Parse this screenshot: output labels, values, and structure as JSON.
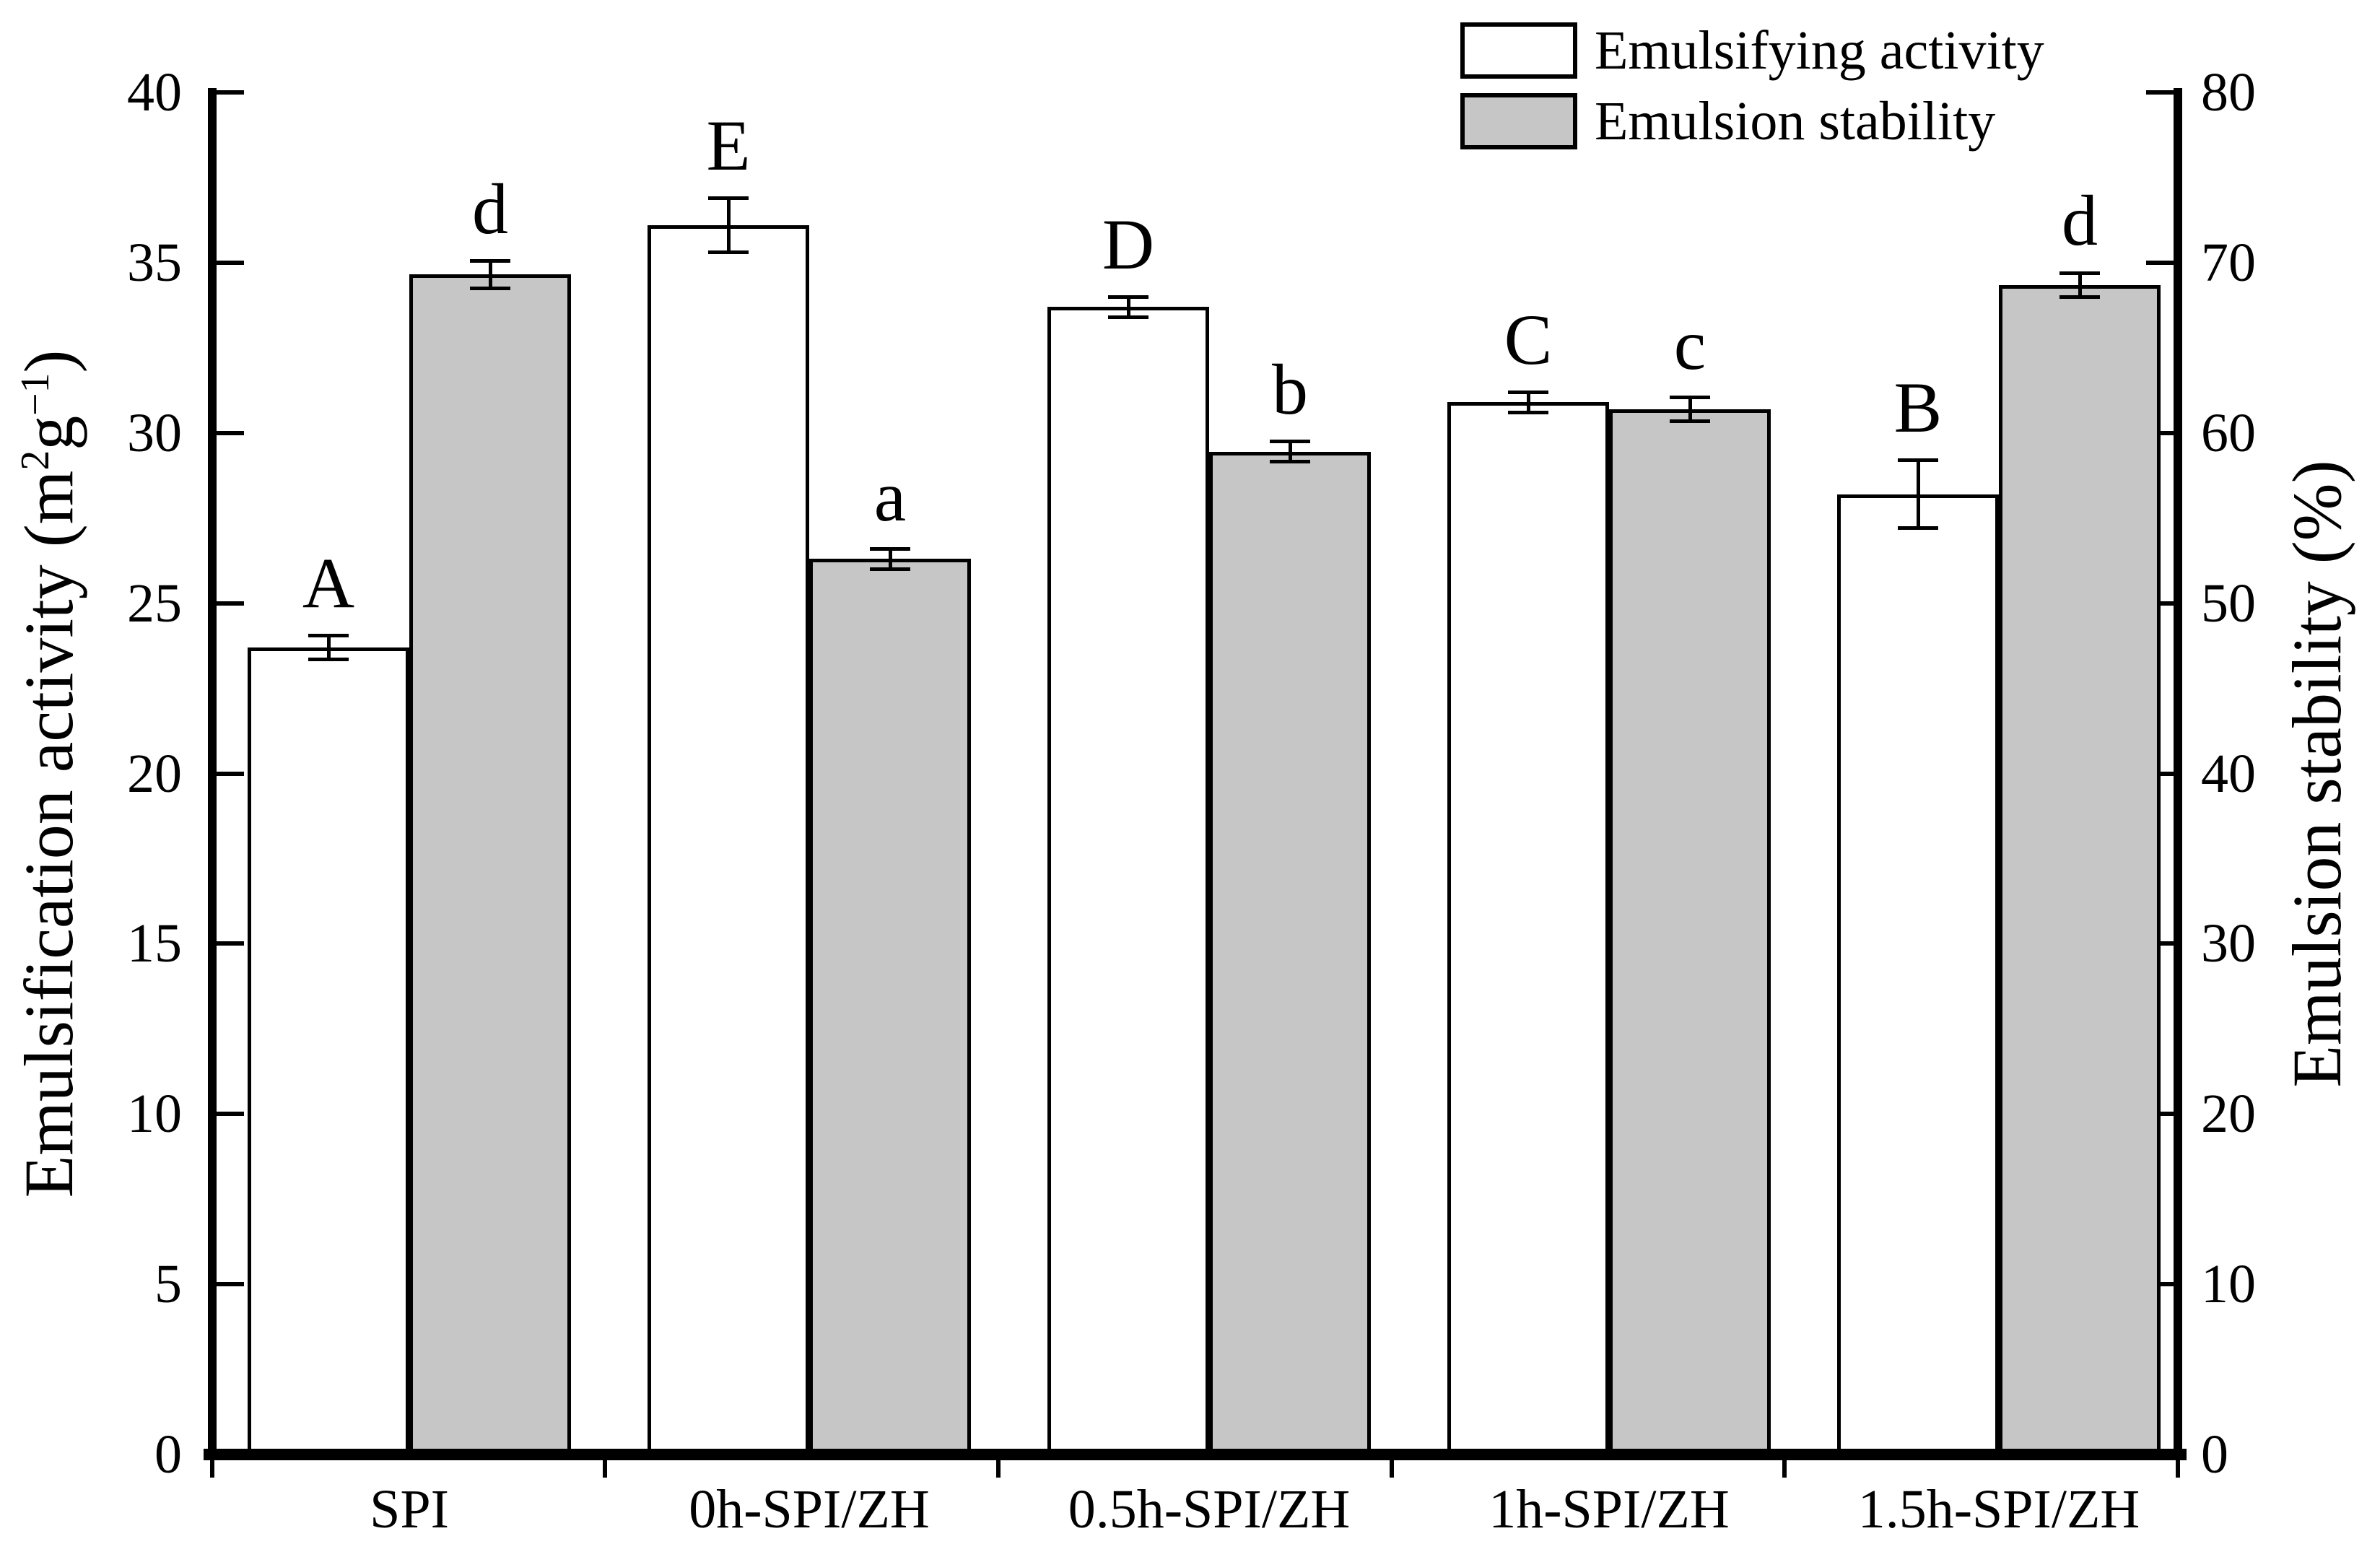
{
  "chart_data": {
    "type": "bar",
    "categories": [
      "SPI",
      "0h-SPI/ZH",
      "0.5h-SPI/ZH",
      "1h-SPI/ZH",
      "1.5h-SPI/ZH"
    ],
    "series": [
      {
        "name": "Emulsifying activity",
        "axis": "left",
        "fill": "#ffffff",
        "values": [
          23.7,
          36.1,
          33.7,
          30.9,
          28.2
        ],
        "errors": [
          0.35,
          0.8,
          0.3,
          0.3,
          1.0
        ],
        "letters": [
          "A",
          "E",
          "D",
          "C",
          "B"
        ]
      },
      {
        "name": "Emulsion stability",
        "axis": "right",
        "fill": "#c6c6c6",
        "values": [
          69.3,
          52.6,
          58.9,
          61.4,
          68.7
        ],
        "errors": [
          0.8,
          0.6,
          0.6,
          0.7,
          0.7
        ],
        "letters": [
          "d",
          "a",
          "b",
          "c",
          "d"
        ]
      }
    ],
    "left_axis": {
      "label_pre": "Emulsification activity (m",
      "label_sup1": "2",
      "label_mid": "g",
      "label_sup2": "−1",
      "label_post": ")",
      "lim": [
        0,
        40
      ],
      "ticks": [
        0,
        5,
        10,
        15,
        20,
        25,
        30,
        35,
        40
      ]
    },
    "right_axis": {
      "label": "Emulsion stability (%)",
      "lim": [
        0,
        80
      ],
      "ticks": [
        0,
        10,
        20,
        30,
        40,
        50,
        60,
        70,
        80
      ]
    },
    "legend": {
      "position": "top-right",
      "entries": [
        "Emulsifying activity",
        "Emulsion stability"
      ]
    },
    "grid": false,
    "colors": {
      "bar_outline": "#000000",
      "gray_fill": "#c6c6c6",
      "white_fill": "#ffffff"
    }
  }
}
